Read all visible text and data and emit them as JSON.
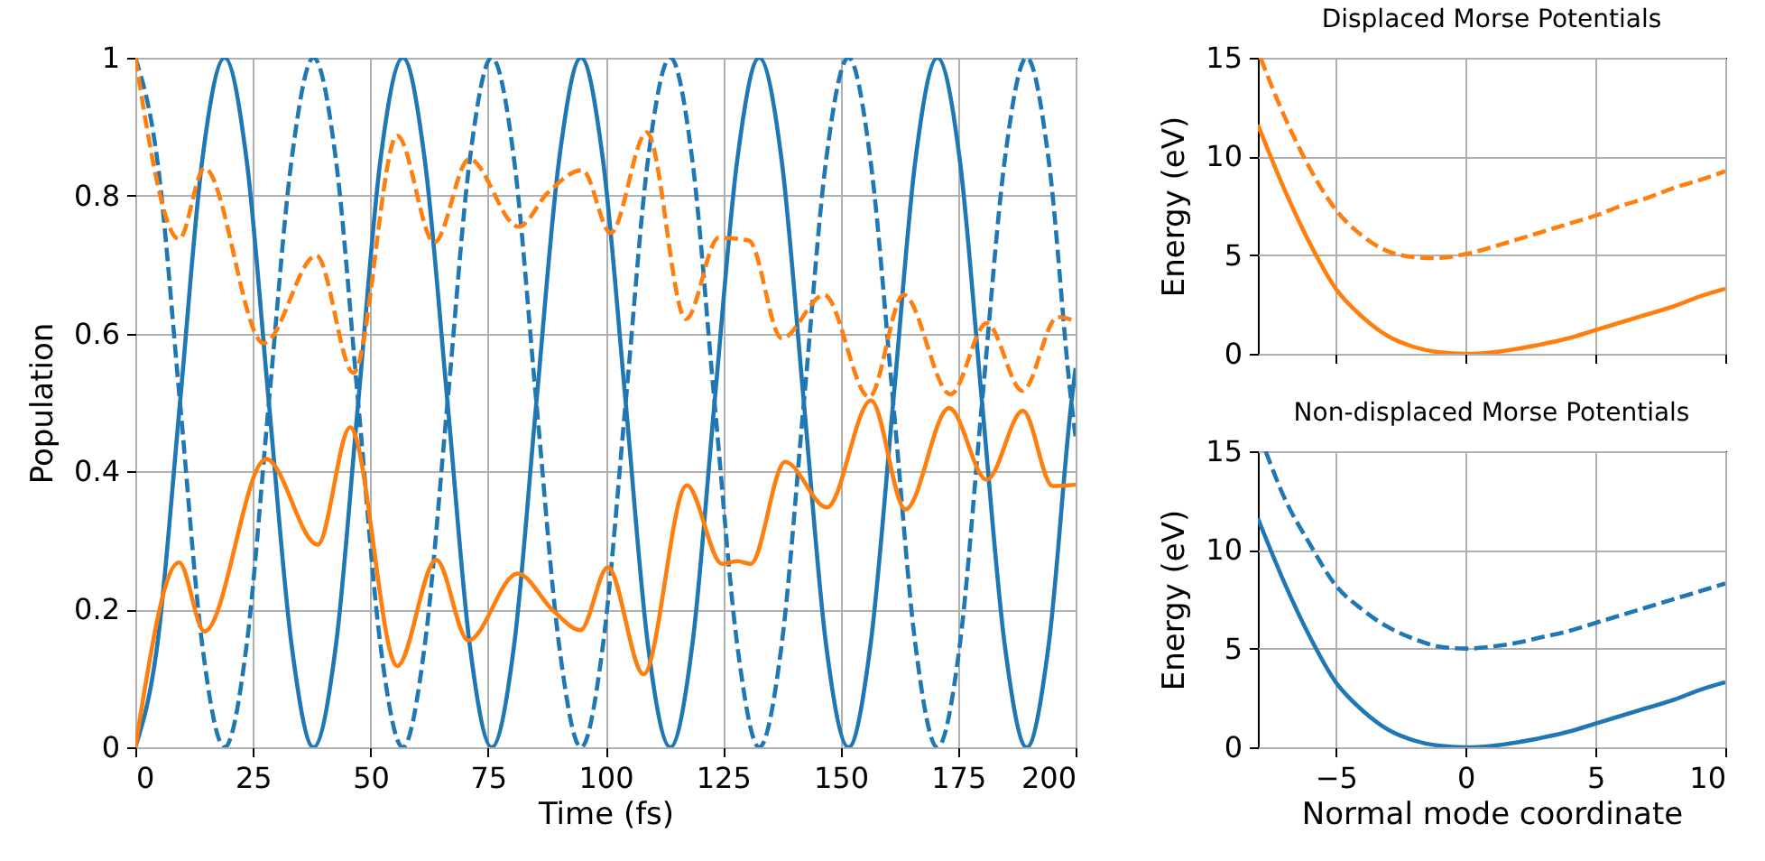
{
  "chart_data": [
    {
      "type": "line",
      "xlabel": "Time (fs)",
      "ylabel": "Population",
      "xlim": [
        0,
        200
      ],
      "ylim": [
        0,
        1
      ],
      "xticks": [
        0,
        25,
        50,
        75,
        100,
        125,
        150,
        175,
        200
      ],
      "yticks": [
        0,
        0.2,
        0.4,
        0.6,
        0.8,
        1
      ],
      "grid": true,
      "series": [
        {
          "color": "#1f77b4",
          "line_style": "solid",
          "x": [
            0,
            4.7,
            9.5,
            14.2,
            19,
            23.7,
            28.4,
            33.2,
            37.9,
            42.7,
            47.4,
            52.1,
            56.9,
            61.6,
            66.4,
            71.1,
            75.8,
            80.6,
            85.3,
            90.1,
            94.8,
            99.5,
            104.3,
            109,
            113.8,
            118.5,
            123.2,
            128,
            132.7,
            137.5,
            142.2,
            146.9,
            151.7,
            156.4,
            161.2,
            165.9,
            170.6,
            175.4,
            180.1,
            184.9,
            189.6,
            194.3,
            199.1,
            200
          ],
          "values": [
            0,
            0.15,
            0.5,
            0.85,
            1,
            0.85,
            0.5,
            0.15,
            0,
            0.15,
            0.5,
            0.85,
            1,
            0.85,
            0.5,
            0.15,
            0,
            0.15,
            0.5,
            0.85,
            1,
            0.85,
            0.5,
            0.15,
            0,
            0.15,
            0.5,
            0.85,
            1,
            0.85,
            0.5,
            0.15,
            0,
            0.15,
            0.5,
            0.85,
            1,
            0.85,
            0.5,
            0.15,
            0,
            0.15,
            0.5,
            0.55
          ]
        },
        {
          "color": "#1f77b4",
          "line_style": "dashed",
          "x": [
            0,
            4.7,
            9.5,
            14.2,
            19,
            23.7,
            28.4,
            33.2,
            37.9,
            42.7,
            47.4,
            52.1,
            56.9,
            61.6,
            66.4,
            71.1,
            75.8,
            80.6,
            85.3,
            90.1,
            94.8,
            99.5,
            104.3,
            109,
            113.8,
            118.5,
            123.2,
            128,
            132.7,
            137.5,
            142.2,
            146.9,
            151.7,
            156.4,
            161.2,
            165.9,
            170.6,
            175.4,
            180.1,
            184.9,
            189.6,
            194.3,
            199.1,
            200
          ],
          "values": [
            1,
            0.85,
            0.5,
            0.15,
            0,
            0.15,
            0.5,
            0.85,
            1,
            0.85,
            0.5,
            0.15,
            0,
            0.15,
            0.5,
            0.85,
            1,
            0.85,
            0.5,
            0.15,
            0,
            0.15,
            0.5,
            0.85,
            1,
            0.85,
            0.5,
            0.15,
            0,
            0.15,
            0.5,
            0.85,
            1,
            0.85,
            0.5,
            0.15,
            0,
            0.15,
            0.5,
            0.85,
            1,
            0.85,
            0.5,
            0.45
          ]
        },
        {
          "color": "#ff7f0e",
          "line_style": "solid",
          "x": [
            0,
            9.3,
            14.7,
            27.8,
            38.8,
            45.7,
            55.7,
            64,
            70.8,
            81.3,
            88.9,
            94.7,
            100.5,
            108.1,
            117.3,
            124.8,
            128,
            130.9,
            138.2,
            147.1,
            156.5,
            163.8,
            173.1,
            181.1,
            188.8,
            195.1,
            200
          ],
          "values": [
            0,
            0.268,
            0.168,
            0.418,
            0.294,
            0.464,
            0.118,
            0.272,
            0.155,
            0.252,
            0.198,
            0.17,
            0.261,
            0.106,
            0.38,
            0.266,
            0.27,
            0.266,
            0.414,
            0.348,
            0.503,
            0.345,
            0.492,
            0.388,
            0.488,
            0.379,
            0.381
          ]
        },
        {
          "color": "#ff7f0e",
          "line_style": "dashed",
          "x": [
            0,
            9.3,
            14.7,
            27.3,
            38.5,
            46.4,
            55.7,
            63.6,
            71,
            81.5,
            87.7,
            95.1,
            101.1,
            108.8,
            117.1,
            124.1,
            130.5,
            137.5,
            146.5,
            156.1,
            163.4,
            173.4,
            181.1,
            188.7,
            196.2,
            200
          ],
          "values": [
            1,
            0.737,
            0.84,
            0.586,
            0.713,
            0.543,
            0.887,
            0.732,
            0.853,
            0.755,
            0.804,
            0.837,
            0.746,
            0.892,
            0.621,
            0.739,
            0.735,
            0.593,
            0.656,
            0.508,
            0.656,
            0.512,
            0.615,
            0.517,
            0.624,
            0.618
          ]
        }
      ]
    },
    {
      "type": "line",
      "title": "Displaced Morse Potentials",
      "ylabel": "Energy (eV)",
      "xlim": [
        -8,
        10
      ],
      "ylim": [
        0,
        15
      ],
      "xticks": [
        -5,
        0,
        5,
        10
      ],
      "yticks": [
        0,
        5,
        10,
        15
      ],
      "grid": true,
      "tick_labels": "y",
      "series": [
        {
          "color": "#ff7f0e",
          "line_style": "solid",
          "x": [
            -8,
            -7,
            -6,
            -5,
            -4,
            -3,
            -2,
            -1,
            0,
            1,
            2,
            3,
            4,
            5,
            6,
            7,
            8,
            9,
            10
          ],
          "values": [
            11.6,
            8.4,
            5.6,
            3.3,
            1.9,
            0.9,
            0.35,
            0.08,
            0,
            0.07,
            0.25,
            0.5,
            0.8,
            1.2,
            1.6,
            2,
            2.4,
            2.9,
            3.3
          ]
        },
        {
          "color": "#ff7f0e",
          "line_style": "dashed",
          "x": [
            -7.9,
            -7,
            -6,
            -5,
            -4,
            -3,
            -2,
            -1.2,
            0,
            1,
            2,
            3,
            4,
            5,
            6,
            7,
            8,
            9,
            10
          ],
          "values": [
            15,
            12.1,
            9.4,
            7.3,
            6,
            5.2,
            4.9,
            4.85,
            5.05,
            5.4,
            5.8,
            6.2,
            6.6,
            7,
            7.5,
            7.9,
            8.4,
            8.8,
            9.25
          ]
        }
      ]
    },
    {
      "type": "line",
      "title": "Non-displaced Morse Potentials",
      "xlabel": "Normal mode coordinate",
      "ylabel": "Energy (eV)",
      "xlim": [
        -8,
        10
      ],
      "ylim": [
        0,
        15
      ],
      "xticks": [
        -5,
        0,
        5,
        10
      ],
      "yticks": [
        0,
        5,
        10,
        15
      ],
      "grid": true,
      "series": [
        {
          "color": "#1f77b4",
          "line_style": "solid",
          "x": [
            -8,
            -7,
            -6,
            -5,
            -4,
            -3,
            -2,
            -1,
            0,
            1,
            2,
            3,
            4,
            5,
            6,
            7,
            8,
            9,
            10
          ],
          "values": [
            11.6,
            8.4,
            5.6,
            3.3,
            1.9,
            0.9,
            0.35,
            0.08,
            0,
            0.07,
            0.25,
            0.5,
            0.8,
            1.2,
            1.6,
            2,
            2.4,
            2.9,
            3.3
          ]
        },
        {
          "color": "#1f77b4",
          "line_style": "dashed",
          "x": [
            -7.7,
            -7,
            -6,
            -5,
            -4,
            -3,
            -2,
            -1,
            0,
            1,
            2,
            3,
            4,
            5,
            6,
            7,
            8,
            9,
            10
          ],
          "values": [
            15,
            12.7,
            10.3,
            8.2,
            7,
            6.1,
            5.5,
            5.1,
            5,
            5.1,
            5.3,
            5.6,
            5.9,
            6.3,
            6.7,
            7.1,
            7.5,
            7.9,
            8.3
          ]
        }
      ]
    }
  ]
}
